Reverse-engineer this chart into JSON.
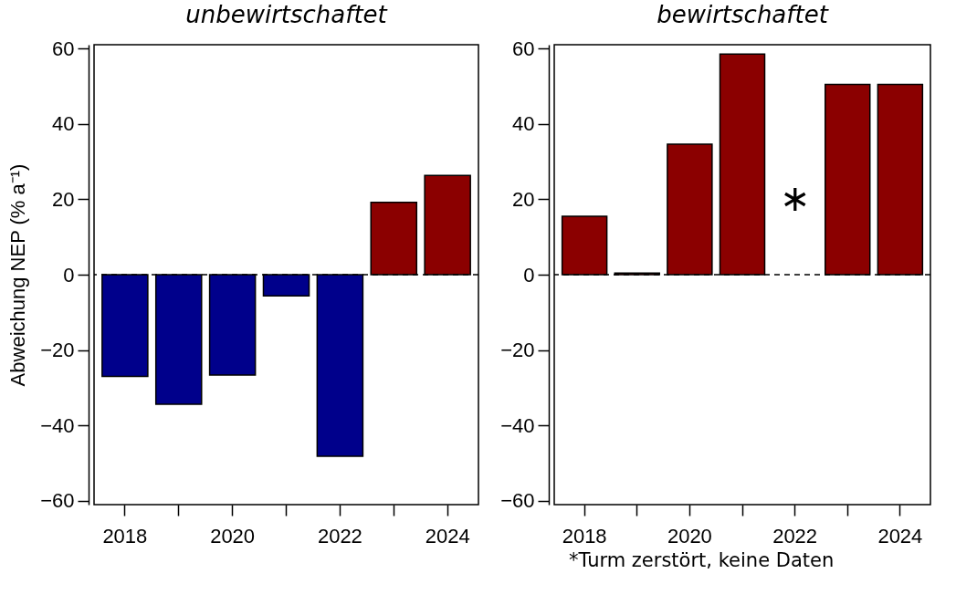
{
  "chart_data": [
    {
      "type": "bar",
      "title": "unbewirtschaftet",
      "ylabel": "Abweichung NEP (% a⁻¹)",
      "categories": [
        "2018",
        null,
        "2020",
        null,
        "2022",
        null,
        "2024"
      ],
      "values": [
        -27,
        -34.4,
        -26.6,
        -5.6,
        -48.2,
        19.2,
        26.3
      ],
      "colors": [
        "#00008b",
        "#00008b",
        "#00008b",
        "#00008b",
        "#00008b",
        "#8b0000",
        "#8b0000"
      ],
      "ylim": [
        -61,
        61
      ],
      "yticks": [
        -60,
        -40,
        -20,
        0,
        20,
        40,
        60
      ],
      "ref_lines": [
        {
          "axis": "y",
          "value": 0,
          "line_style": "dashed"
        }
      ]
    },
    {
      "type": "bar",
      "title": "bewirtschaftet",
      "categories": [
        "2018",
        null,
        "2020",
        null,
        "2022",
        null,
        "2024"
      ],
      "values": [
        15.5,
        0.4,
        34.6,
        58.5,
        null,
        50.5,
        50.5
      ],
      "colors": [
        "#8b0000",
        "#8b0000",
        "#8b0000",
        "#8b0000",
        "#8b0000",
        "#8b0000",
        "#8b0000"
      ],
      "ylim": [
        -61,
        61
      ],
      "yticks": [
        -60,
        -40,
        -20,
        0,
        20,
        40,
        60
      ],
      "ref_lines": [
        {
          "axis": "y",
          "value": 0,
          "line_style": "dashed"
        }
      ],
      "annotations": [
        "∗",
        "*Turm zerstört, keine Daten"
      ]
    }
  ]
}
